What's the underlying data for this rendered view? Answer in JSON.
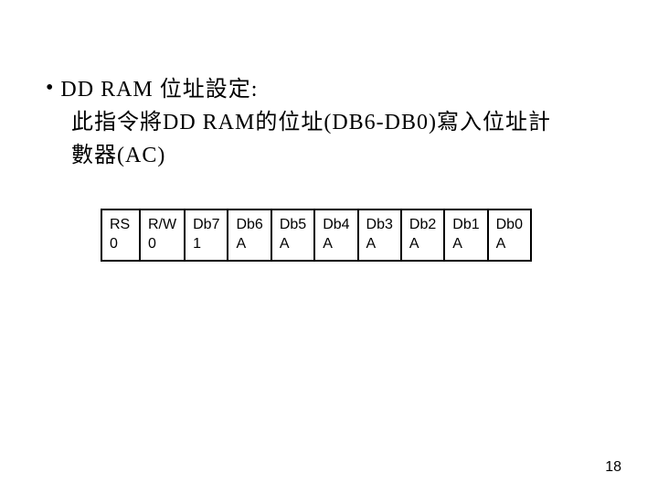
{
  "content": {
    "bullet_glyph": "•",
    "title": "DD RAM 位址設定:",
    "desc_line1": "此指令將DD RAM的位址(DB6-DB0)寫入位址計",
    "desc_line2": "數器(AC)"
  },
  "table": {
    "border_color": "#000000",
    "text_color": "#000000",
    "font_size": 16,
    "cells": [
      {
        "l1": "RS",
        "l2": "0"
      },
      {
        "l1": "R/W",
        "l2": "0"
      },
      {
        "l1": "Db7",
        "l2": "1"
      },
      {
        "l1": "Db6",
        "l2": "A"
      },
      {
        "l1": "Db5",
        "l2": "A"
      },
      {
        "l1": "Db4",
        "l2": "A"
      },
      {
        "l1": "Db3",
        "l2": "A"
      },
      {
        "l1": "Db2",
        "l2": "A"
      },
      {
        "l1": "Db1",
        "l2": "A"
      },
      {
        "l1": "Db0",
        "l2": "A"
      }
    ]
  },
  "page_number": "18",
  "colors": {
    "background": "#ffffff",
    "text": "#000000"
  }
}
